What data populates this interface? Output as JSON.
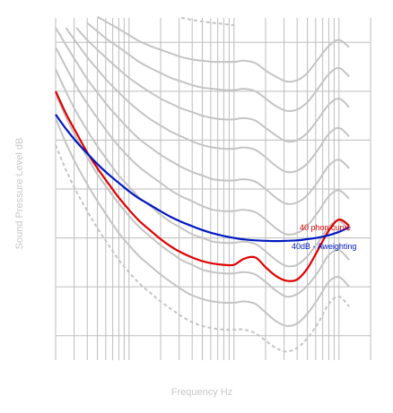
{
  "chart_data": {
    "type": "line",
    "title": "",
    "xlabel": "Frequency Hz",
    "ylabel": "Sound Pressure Level dB",
    "xscale": "log",
    "xlim": [
      20,
      20000
    ],
    "ylim": [
      -10,
      130
    ],
    "grid": true,
    "legend": "none",
    "colors": {
      "grid": "#bdbdbd",
      "contour": "#c4c4c4",
      "phon40": "#e00000",
      "aweight": "#0018c0"
    },
    "contours": [
      {
        "style": "dashed",
        "x": [
          20,
          25,
          31.5,
          40,
          50,
          63,
          80,
          100,
          125,
          160,
          200,
          250,
          315,
          400,
          500,
          630,
          800,
          1000,
          1250,
          1600,
          2000,
          2500,
          3150,
          4000,
          5000,
          6300,
          8000,
          10000,
          12500
        ],
        "y": [
          78,
          68,
          59,
          51,
          44,
          37.5,
          31,
          26,
          21.5,
          17.5,
          14,
          11,
          8,
          5.5,
          4,
          3,
          2.5,
          2.5,
          2.5,
          1,
          -2,
          -5,
          -6.5,
          -5,
          -1,
          5,
          13,
          16,
          12
        ]
      },
      {
        "style": "solid",
        "x": [
          20,
          25,
          31.5,
          40,
          50,
          63,
          80,
          100,
          125,
          160,
          200,
          250,
          315,
          400,
          500,
          630,
          800,
          1000,
          1250,
          1600,
          2000,
          2500,
          3150,
          4000,
          5000,
          6300,
          8000,
          10000,
          12500
        ],
        "y": [
          89,
          79,
          70,
          62,
          55,
          48.5,
          42,
          37,
          32.5,
          28.5,
          25,
          22,
          19,
          16.5,
          15,
          14,
          13.5,
          13.5,
          14,
          13,
          9.5,
          6,
          4,
          5,
          9,
          15,
          22,
          24,
          20
        ]
      },
      {
        "style": "solid",
        "x": [
          20,
          25,
          31.5,
          40,
          50,
          63,
          80,
          100,
          125,
          160,
          200,
          250,
          315,
          400,
          500,
          630,
          800,
          1000,
          1250,
          1600,
          2000,
          2500,
          3150,
          4000,
          5000,
          6300,
          8000,
          10000,
          12500
        ],
        "y": [
          99,
          89.5,
          81,
          73,
          66,
          60,
          54,
          49,
          44.5,
          40.5,
          37,
          34,
          31,
          29,
          27,
          26,
          25.5,
          25.5,
          26,
          25,
          22,
          18.5,
          16,
          17,
          20.5,
          26,
          33,
          35,
          31
        ]
      },
      {
        "style": "solid",
        "x": [
          20,
          25,
          31.5,
          40,
          50,
          63,
          80,
          100,
          125,
          160,
          200,
          250,
          315,
          400,
          500,
          630,
          800,
          1000,
          1250,
          1600,
          2000,
          2500,
          3150,
          4000,
          5000,
          6300,
          8000,
          10000,
          12500
        ],
        "y": [
          109,
          100,
          91.5,
          84,
          77.5,
          71.5,
          65.5,
          61,
          56.5,
          53,
          49.5,
          46.5,
          44,
          41.5,
          40,
          38.5,
          38,
          38,
          38.5,
          37.5,
          34.5,
          31,
          28.5,
          29,
          32.5,
          38,
          44.5,
          47,
          43
        ]
      },
      {
        "style": "solid",
        "x": [
          20,
          25,
          31.5,
          40,
          50,
          63,
          80,
          100,
          125,
          160,
          200,
          250,
          315,
          400,
          500,
          630,
          800,
          1000,
          1250,
          1600,
          2000,
          2500,
          3150,
          4000,
          5000,
          6300,
          8000,
          10000,
          12500
        ],
        "y": [
          118,
          110,
          102,
          95,
          89,
          83,
          77.5,
          73,
          69,
          65.5,
          62.5,
          59.5,
          57,
          55,
          53,
          51.5,
          51,
          51,
          51.5,
          50.5,
          47.5,
          44,
          41.5,
          42,
          45,
          50.5,
          57,
          59.5,
          56
        ]
      },
      {
        "style": "solid",
        "x": [
          20,
          25,
          31.5,
          40,
          50,
          63,
          80,
          100,
          125,
          160,
          200,
          250,
          315,
          400,
          500,
          630,
          800,
          1000,
          1250,
          1600,
          2000,
          2500,
          3150,
          4000,
          5000,
          6300,
          8000,
          10000,
          12500
        ],
        "y": [
          126,
          119,
          112,
          105,
          99.5,
          94,
          89,
          84.5,
          80.5,
          77,
          74,
          71.5,
          69,
          67,
          65.5,
          64,
          63.5,
          63.5,
          64,
          63,
          60,
          56.5,
          54,
          54.5,
          57.5,
          63,
          69.5,
          72,
          68.5
        ]
      },
      {
        "style": "solid",
        "x": [
          20,
          25,
          31.5,
          40,
          50,
          63,
          80,
          100,
          125,
          160,
          200,
          250,
          315,
          400,
          500,
          630,
          800,
          1000,
          1250,
          1600,
          2000,
          2500,
          3150,
          4000,
          5000,
          6300,
          8000,
          10000,
          12500
        ],
        "y": [
          131,
          126,
          120,
          114,
          109,
          104,
          99.5,
          95.5,
          92,
          88.5,
          86,
          83.5,
          81.5,
          79.5,
          78,
          77,
          76.5,
          76.5,
          77,
          76,
          73,
          69.5,
          67,
          67.5,
          70.5,
          76,
          82.5,
          85,
          81.5
        ]
      },
      {
        "style": "solid",
        "x": [
          20,
          25,
          31.5,
          40,
          50,
          63,
          80,
          100,
          125,
          160,
          200,
          250,
          315,
          400,
          500,
          630,
          800,
          1000,
          1250,
          1600,
          2000,
          2500,
          3150,
          4000,
          5000,
          6300,
          8000,
          10000,
          12500
        ],
        "y": [
          135,
          131,
          126,
          121,
          117,
          113,
          109,
          105.5,
          102.5,
          99.5,
          97,
          95,
          93,
          91.5,
          90,
          89,
          88.5,
          88.5,
          89,
          88,
          85,
          82,
          79.5,
          80,
          83,
          88.5,
          94.5,
          97,
          93.5
        ]
      },
      {
        "style": "solid",
        "x": [
          20,
          25,
          31.5,
          40,
          50,
          63,
          80,
          100,
          125,
          160,
          200,
          250,
          315,
          400,
          500,
          630,
          800,
          1000,
          1250,
          1600,
          2000,
          2500,
          3150,
          4000,
          5000,
          6300,
          8000,
          10000,
          12500
        ],
        "y": [
          138,
          135,
          131.5,
          128,
          124.5,
          121,
          118,
          115,
          112,
          109.5,
          107.5,
          105.5,
          104,
          102.5,
          101.5,
          101,
          100.5,
          100.5,
          101,
          100,
          97,
          94,
          92,
          92.5,
          95.5,
          101,
          107,
          109.5,
          106
        ]
      },
      {
        "style": "solid",
        "x": [
          20,
          25,
          31.5,
          40,
          50,
          63,
          80,
          100,
          125,
          160,
          200,
          250,
          315,
          400,
          500,
          630,
          800,
          1000,
          1250,
          1600,
          2000,
          2500,
          3150,
          4000,
          5000,
          6300,
          8000,
          10000,
          12500
        ],
        "y": [
          140,
          138,
          135.5,
          133,
          130.5,
          128,
          125.5,
          123,
          120.5,
          118.5,
          117,
          115.5,
          114,
          113,
          112.5,
          112,
          112,
          112,
          112.5,
          111.5,
          108.5,
          106,
          104,
          104.5,
          107.5,
          113,
          118.5,
          121,
          118
        ]
      },
      {
        "style": "dashed",
        "x": [
          20,
          31.5,
          50,
          80,
          125,
          200,
          315,
          500,
          800,
          1000
        ],
        "y": [
          141,
          139.5,
          137.5,
          135.5,
          133.5,
          131.5,
          130,
          128.5,
          127.5,
          127
        ]
      }
    ],
    "series": [
      {
        "name": "40 phon curve",
        "color": "#e00000",
        "x": [
          20,
          25,
          31.5,
          40,
          50,
          63,
          80,
          100,
          125,
          160,
          200,
          250,
          315,
          400,
          500,
          630,
          800,
          1000,
          1250,
          1600,
          2000,
          2500,
          3150,
          4000,
          5000,
          6300,
          8000,
          10000,
          12500
        ],
        "y": [
          100,
          91,
          83,
          75,
          68.5,
          62.5,
          56.5,
          51.5,
          47,
          43,
          39.5,
          36.5,
          34,
          32,
          30.5,
          29.5,
          29,
          29,
          31.5,
          32,
          28,
          24.5,
          22.5,
          23,
          27.5,
          35,
          43,
          47.5,
          45
        ]
      },
      {
        "name": "40dB - Aweighting",
        "color": "#0018c0",
        "x": [
          20,
          25,
          31.5,
          40,
          50,
          63,
          80,
          100,
          125,
          160,
          200,
          250,
          315,
          400,
          500,
          630,
          800,
          1000,
          1250,
          1600,
          2000,
          2500,
          3150,
          4000,
          5000,
          6300,
          8000,
          10000,
          12500
        ],
        "y": [
          90.5,
          84.7,
          79.4,
          74.6,
          70.2,
          66.2,
          62.5,
          59.1,
          56.1,
          53.4,
          50.9,
          48.6,
          46.6,
          44.8,
          43.2,
          41.9,
          40.8,
          40,
          39.4,
          39,
          38.8,
          38.7,
          38.8,
          39,
          39.5,
          40.1,
          41.1,
          42.5,
          44.3
        ]
      }
    ],
    "annotations": [
      {
        "text": "40 phon curve",
        "color": "#e00000"
      },
      {
        "text": "40dB - Aweighting",
        "color": "#0018c0"
      }
    ]
  }
}
